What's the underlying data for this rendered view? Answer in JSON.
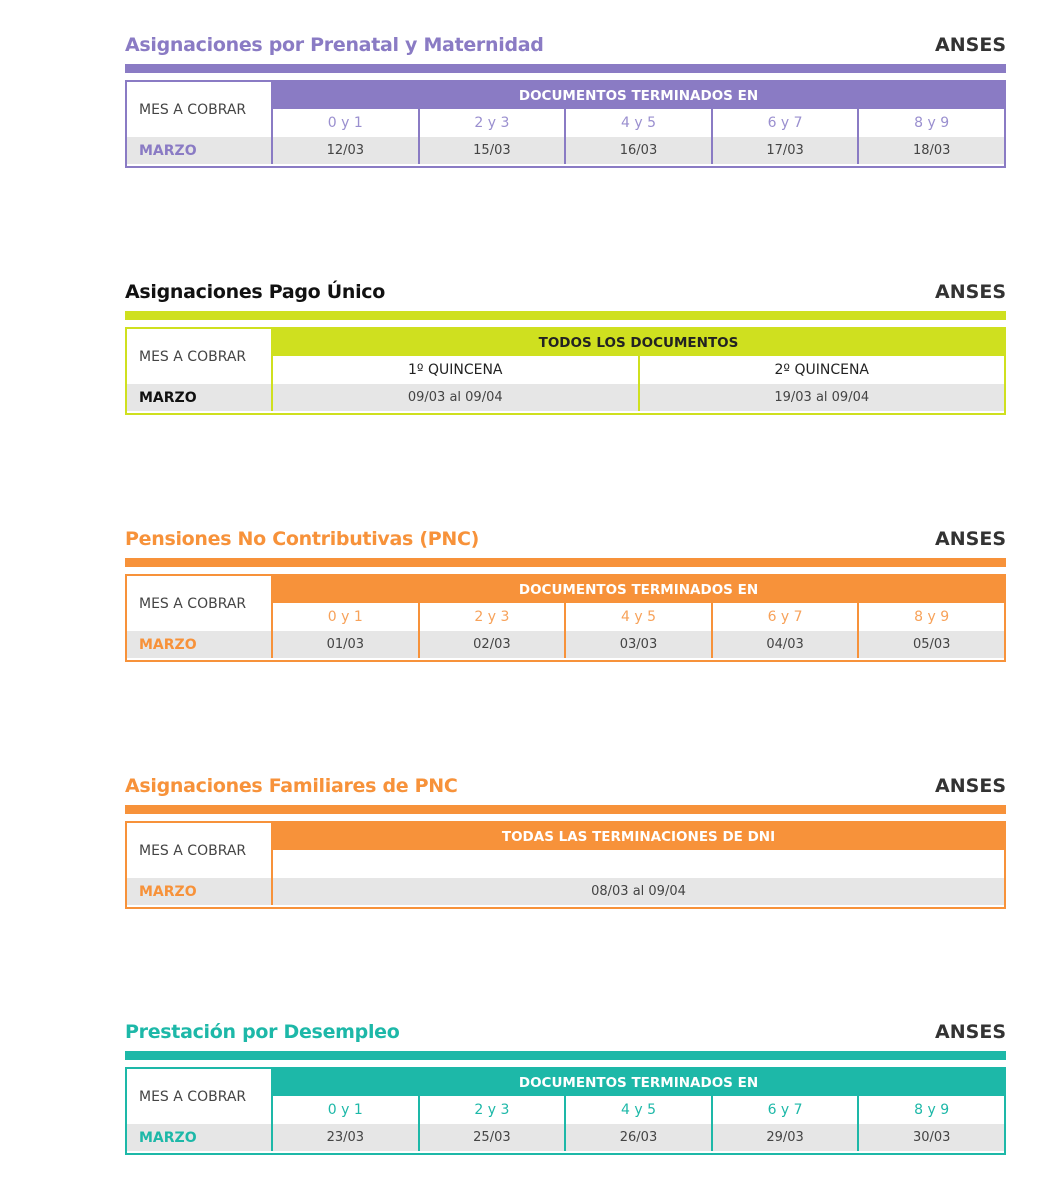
{
  "brand": "ANSES",
  "mes_label": "MES A COBRAR",
  "sections": [
    {
      "title": "Asignaciones por Prenatal y Maternidad",
      "color": "#8a7bc4",
      "title_color": "#8a7bc4",
      "sub_color": "#9a8fcf",
      "month_color": "#8a7bc4",
      "header": "DOCUMENTOS TERMINADOS EN",
      "subs": [
        "0 y 1",
        "2 y 3",
        "4 y 5",
        "6 y 7",
        "8 y 9"
      ],
      "month": "MARZO",
      "values": [
        "12/03",
        "15/03",
        "16/03",
        "17/03",
        "18/03"
      ]
    },
    {
      "title": "Asignaciones Pago Único",
      "color": "#cfe01f",
      "title_color": "#111111",
      "sub_color": "#222222",
      "month_color": "#111111",
      "header_text_color": "#222222",
      "header": "TODOS LOS DOCUMENTOS",
      "subs": [
        "1º QUINCENA",
        "2º QUINCENA"
      ],
      "month": "MARZO",
      "values": [
        "09/03 al 09/04",
        "19/03 al 09/04"
      ]
    },
    {
      "title": "Pensiones No Contributivas (PNC)",
      "color": "#f7923a",
      "title_color": "#f7923a",
      "sub_color": "#f7a25a",
      "month_color": "#f7923a",
      "header": "DOCUMENTOS TERMINADOS EN",
      "subs": [
        "0 y 1",
        "2 y 3",
        "4 y 5",
        "6 y 7",
        "8 y 9"
      ],
      "month": "MARZO",
      "values": [
        "01/03",
        "02/03",
        "03/03",
        "04/03",
        "05/03"
      ]
    },
    {
      "title": "Asignaciones Familiares de PNC",
      "color": "#f7923a",
      "title_color": "#f7923a",
      "sub_color": "#f7a25a",
      "month_color": "#f7923a",
      "header": "TODAS LAS TERMINACIONES DE DNI",
      "subs": [
        ""
      ],
      "month": "MARZO",
      "values": [
        "08/03 al 09/04"
      ]
    },
    {
      "title": "Prestación por Desempleo",
      "color": "#1db8a8",
      "title_color": "#1db8a8",
      "sub_color": "#1db8a8",
      "month_color": "#1db8a8",
      "header": "DOCUMENTOS TERMINADOS EN",
      "subs": [
        "0 y 1",
        "2 y 3",
        "4 y 5",
        "6 y 7",
        "8 y 9"
      ],
      "month": "MARZO",
      "values": [
        "23/03",
        "25/03",
        "26/03",
        "29/03",
        "30/03"
      ]
    }
  ]
}
